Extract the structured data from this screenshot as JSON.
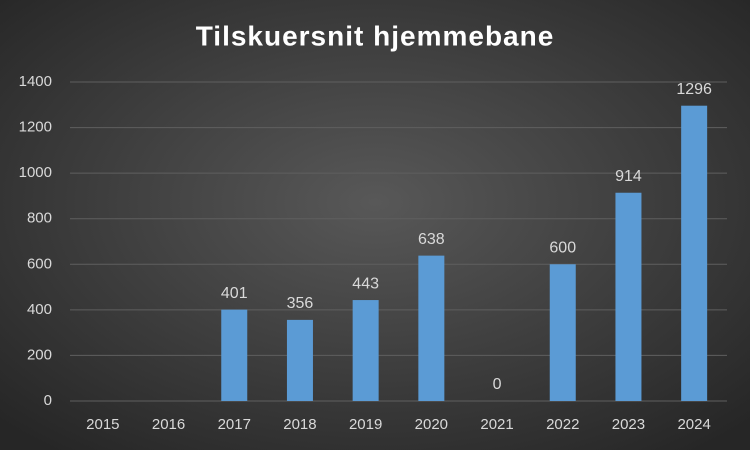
{
  "chart_data": {
    "type": "bar",
    "title": "Tilskuersnit hjemmebane",
    "categories": [
      "2015",
      "2016",
      "2017",
      "2018",
      "2019",
      "2020",
      "2021",
      "2022",
      "2023",
      "2024"
    ],
    "values": [
      null,
      null,
      401,
      356,
      443,
      638,
      0,
      600,
      914,
      1296
    ],
    "color": "#5b9bd5",
    "ylim": [
      0,
      1400
    ],
    "yticks": [
      0,
      200,
      400,
      600,
      800,
      1000,
      1200,
      1400
    ],
    "grid": true
  }
}
